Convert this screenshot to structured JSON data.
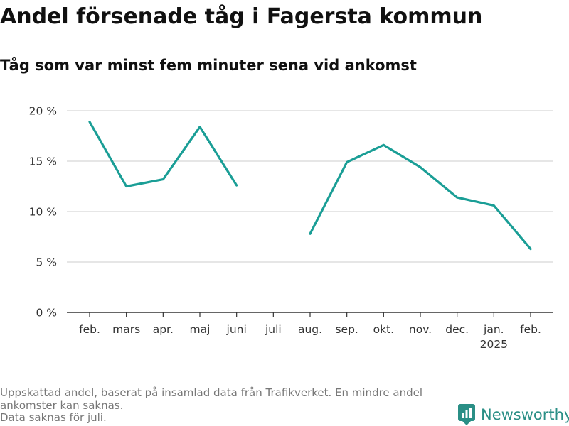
{
  "title": "Andel försenade tåg i Fagersta kommun",
  "subtitle": "Tåg som var minst fem minuter sena vid ankomst",
  "footnote": [
    "Uppskattad andel, baserat på insamlad data från Trafikverket. En mindre andel",
    "ankomster kan saknas.",
    "Data saknas för juli."
  ],
  "brand": "Newsworthy",
  "colors": {
    "line": "#1a9e96",
    "grid": "#dddddd",
    "axis": "#333333",
    "brand": "#2a8f86"
  },
  "chart_data": {
    "type": "line",
    "title": "",
    "xlabel": "",
    "ylabel": "",
    "categories": [
      "feb.",
      "mars",
      "apr.",
      "maj",
      "juni",
      "juli",
      "aug.",
      "sep.",
      "okt.",
      "nov.",
      "dec.",
      "jan.",
      "feb."
    ],
    "category_sublabels": [
      "",
      "",
      "",
      "",
      "",
      "",
      "",
      "",
      "",
      "",
      "",
      "2025",
      ""
    ],
    "series": [
      {
        "values": [
          18.9,
          12.5,
          13.2,
          18.4,
          12.6,
          null,
          7.8,
          14.9,
          16.6,
          14.4,
          11.4,
          10.6,
          6.3
        ]
      }
    ],
    "y_ticks": [
      0,
      5,
      10,
      15,
      20
    ],
    "y_tick_labels": [
      "0 %",
      "5 %",
      "10 %",
      "15 %",
      "20 %"
    ],
    "ylim": [
      0,
      20
    ],
    "grid": true,
    "legend": "none"
  }
}
